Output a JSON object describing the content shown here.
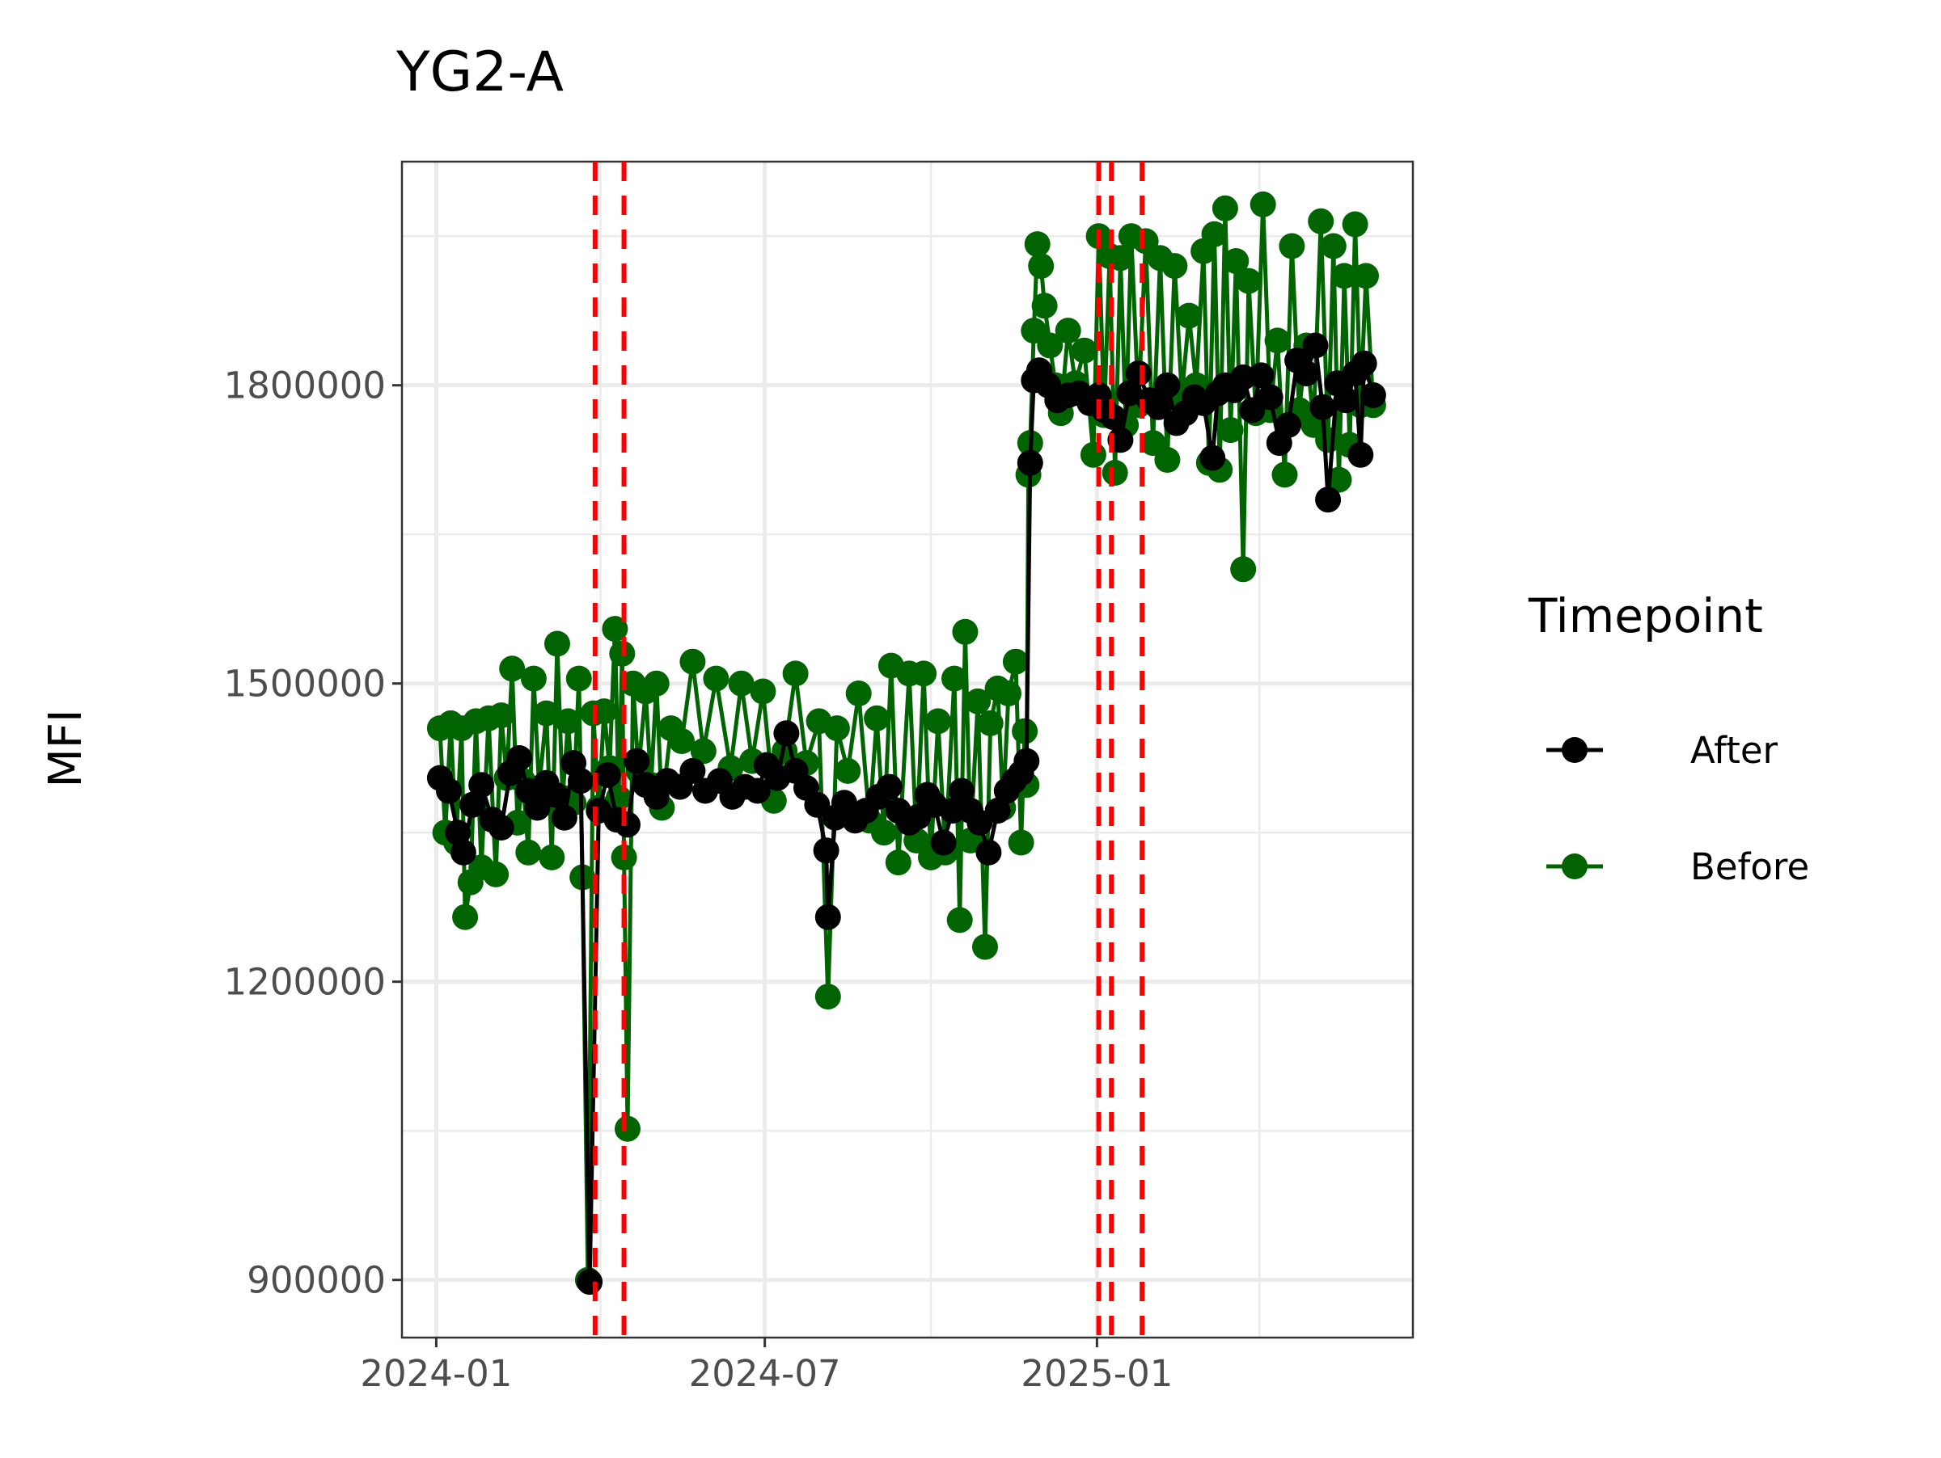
{
  "chart_data": {
    "type": "line",
    "title": "YG2-A",
    "xlabel": "",
    "ylabel": "MFI",
    "x_ticks": [
      "2024-01",
      "2024-07",
      "2025-01"
    ],
    "y_ticks": [
      "900000",
      "1200000",
      "1500000",
      "1800000"
    ],
    "xlim": [
      "2023-12-13",
      "2025-06-25"
    ],
    "ylim": [
      842000,
      2025000
    ],
    "grid": true,
    "legend": {
      "title": "Timepoint",
      "placement": "right",
      "entries": [
        "After",
        "Before"
      ]
    },
    "reference_lines": {
      "style": "dashed",
      "color": "#ff0000",
      "x": [
        "2024-03-29",
        "2024-04-14",
        "2025-01-02",
        "2025-01-09",
        "2025-01-26"
      ]
    },
    "series": [
      {
        "name": "After",
        "color": "#000000",
        "points": [
          [
            "2024-01-03",
            1405000
          ],
          [
            "2024-01-08",
            1392000
          ],
          [
            "2024-01-13",
            1350000
          ],
          [
            "2024-01-16",
            1330000
          ],
          [
            "2024-01-21",
            1378000
          ],
          [
            "2024-01-26",
            1398000
          ],
          [
            "2024-02-01",
            1363000
          ],
          [
            "2024-02-06",
            1355000
          ],
          [
            "2024-02-11",
            1410000
          ],
          [
            "2024-02-16",
            1425000
          ],
          [
            "2024-02-21",
            1392000
          ],
          [
            "2024-02-26",
            1375000
          ],
          [
            "2024-03-02",
            1400000
          ],
          [
            "2024-03-07",
            1388000
          ],
          [
            "2024-03-12",
            1365000
          ],
          [
            "2024-03-17",
            1420000
          ],
          [
            "2024-03-21",
            1402000
          ],
          [
            "2024-03-26",
            898000
          ],
          [
            "2024-03-31",
            1372000
          ],
          [
            "2024-04-05",
            1408000
          ],
          [
            "2024-04-10",
            1363000
          ],
          [
            "2024-04-16",
            1358000
          ],
          [
            "2024-04-21",
            1422000
          ],
          [
            "2024-04-26",
            1398000
          ],
          [
            "2024-05-02",
            1386000
          ],
          [
            "2024-05-08",
            1402000
          ],
          [
            "2024-05-15",
            1396000
          ],
          [
            "2024-05-22",
            1412000
          ],
          [
            "2024-05-29",
            1392000
          ],
          [
            "2024-06-06",
            1402000
          ],
          [
            "2024-06-13",
            1386000
          ],
          [
            "2024-06-20",
            1396000
          ],
          [
            "2024-06-27",
            1392000
          ],
          [
            "2024-07-02",
            1418000
          ],
          [
            "2024-07-08",
            1405000
          ],
          [
            "2024-07-13",
            1450000
          ],
          [
            "2024-07-18",
            1412000
          ],
          [
            "2024-07-24",
            1395000
          ],
          [
            "2024-07-30",
            1378000
          ],
          [
            "2024-08-04",
            1332000
          ],
          [
            "2024-08-05",
            1265000
          ],
          [
            "2024-08-09",
            1365000
          ],
          [
            "2024-08-14",
            1380000
          ],
          [
            "2024-08-20",
            1362000
          ],
          [
            "2024-08-26",
            1372000
          ],
          [
            "2024-09-02",
            1386000
          ],
          [
            "2024-09-08",
            1396000
          ],
          [
            "2024-09-13",
            1372000
          ],
          [
            "2024-09-19",
            1360000
          ],
          [
            "2024-09-24",
            1366000
          ],
          [
            "2024-09-29",
            1388000
          ],
          [
            "2024-10-03",
            1378000
          ],
          [
            "2024-10-08",
            1340000
          ],
          [
            "2024-10-13",
            1372000
          ],
          [
            "2024-10-18",
            1392000
          ],
          [
            "2024-10-23",
            1372000
          ],
          [
            "2024-10-28",
            1360000
          ],
          [
            "2024-11-02",
            1330000
          ],
          [
            "2024-11-07",
            1372000
          ],
          [
            "2024-11-12",
            1392000
          ],
          [
            "2024-11-16",
            1402000
          ],
          [
            "2024-11-20",
            1410000
          ],
          [
            "2024-11-23",
            1422000
          ],
          [
            "2024-11-25",
            1722000
          ],
          [
            "2024-11-27",
            1805000
          ],
          [
            "2024-11-30",
            1815000
          ],
          [
            "2024-12-05",
            1800000
          ],
          [
            "2024-12-10",
            1785000
          ],
          [
            "2024-12-16",
            1790000
          ],
          [
            "2024-12-22",
            1792000
          ],
          [
            "2024-12-28",
            1782000
          ],
          [
            "2025-01-02",
            1790000
          ],
          [
            "2025-01-05",
            1775000
          ],
          [
            "2025-01-10",
            1768000
          ],
          [
            "2025-01-14",
            1745000
          ],
          [
            "2025-01-19",
            1792000
          ],
          [
            "2025-01-24",
            1812000
          ],
          [
            "2025-01-30",
            1785000
          ],
          [
            "2025-02-04",
            1778000
          ],
          [
            "2025-02-09",
            1800000
          ],
          [
            "2025-02-14",
            1762000
          ],
          [
            "2025-02-19",
            1772000
          ],
          [
            "2025-02-24",
            1788000
          ],
          [
            "2025-03-01",
            1782000
          ],
          [
            "2025-03-06",
            1727000
          ],
          [
            "2025-03-09",
            1792000
          ],
          [
            "2025-03-13",
            1800000
          ],
          [
            "2025-03-18",
            1795000
          ],
          [
            "2025-03-23",
            1808000
          ],
          [
            "2025-03-28",
            1775000
          ],
          [
            "2025-04-02",
            1810000
          ],
          [
            "2025-04-07",
            1788000
          ],
          [
            "2025-04-12",
            1742000
          ],
          [
            "2025-04-17",
            1760000
          ],
          [
            "2025-04-22",
            1825000
          ],
          [
            "2025-04-27",
            1812000
          ],
          [
            "2025-05-02",
            1840000
          ],
          [
            "2025-05-06",
            1778000
          ],
          [
            "2025-05-09",
            1685000
          ],
          [
            "2025-05-14",
            1802000
          ],
          [
            "2025-05-19",
            1785000
          ],
          [
            "2025-05-24",
            1812000
          ],
          [
            "2025-05-27",
            1730000
          ],
          [
            "2025-05-29",
            1822000
          ],
          [
            "2025-06-03",
            1790000
          ]
        ]
      },
      {
        "name": "Before",
        "color": "#006400",
        "points": [
          [
            "2024-01-03",
            1455000
          ],
          [
            "2024-01-06",
            1350000
          ],
          [
            "2024-01-09",
            1460000
          ],
          [
            "2024-01-12",
            1340000
          ],
          [
            "2024-01-15",
            1455000
          ],
          [
            "2024-01-17",
            1265000
          ],
          [
            "2024-01-20",
            1300000
          ],
          [
            "2024-01-23",
            1462000
          ],
          [
            "2024-01-26",
            1315000
          ],
          [
            "2024-01-30",
            1465000
          ],
          [
            "2024-02-03",
            1308000
          ],
          [
            "2024-02-06",
            1468000
          ],
          [
            "2024-02-09",
            1405000
          ],
          [
            "2024-02-12",
            1515000
          ],
          [
            "2024-02-15",
            1360000
          ],
          [
            "2024-02-18",
            1402000
          ],
          [
            "2024-02-21",
            1330000
          ],
          [
            "2024-02-24",
            1505000
          ],
          [
            "2024-02-27",
            1395000
          ],
          [
            "2024-03-02",
            1470000
          ],
          [
            "2024-03-05",
            1325000
          ],
          [
            "2024-03-08",
            1540000
          ],
          [
            "2024-03-11",
            1385000
          ],
          [
            "2024-03-14",
            1462000
          ],
          [
            "2024-03-17",
            1380000
          ],
          [
            "2024-03-20",
            1505000
          ],
          [
            "2024-03-22",
            1305000
          ],
          [
            "2024-03-25",
            900000
          ],
          [
            "2024-03-28",
            1470000
          ],
          [
            "2024-03-31",
            1375000
          ],
          [
            "2024-04-03",
            1472000
          ],
          [
            "2024-04-06",
            1415000
          ],
          [
            "2024-04-09",
            1555000
          ],
          [
            "2024-04-11",
            1385000
          ],
          [
            "2024-04-13",
            1530000
          ],
          [
            "2024-04-14",
            1325000
          ],
          [
            "2024-04-16",
            1052000
          ],
          [
            "2024-04-19",
            1500000
          ],
          [
            "2024-04-22",
            1412000
          ],
          [
            "2024-04-26",
            1492000
          ],
          [
            "2024-04-29",
            1398000
          ],
          [
            "2024-05-02",
            1500000
          ],
          [
            "2024-05-05",
            1375000
          ],
          [
            "2024-05-10",
            1455000
          ],
          [
            "2024-05-16",
            1442000
          ],
          [
            "2024-05-22",
            1522000
          ],
          [
            "2024-05-28",
            1432000
          ],
          [
            "2024-06-04",
            1505000
          ],
          [
            "2024-06-12",
            1415000
          ],
          [
            "2024-06-18",
            1500000
          ],
          [
            "2024-06-24",
            1422000
          ],
          [
            "2024-06-30",
            1492000
          ],
          [
            "2024-07-06",
            1382000
          ],
          [
            "2024-07-12",
            1432000
          ],
          [
            "2024-07-18",
            1510000
          ],
          [
            "2024-07-24",
            1420000
          ],
          [
            "2024-07-31",
            1462000
          ],
          [
            "2024-08-05",
            1185000
          ],
          [
            "2024-08-10",
            1455000
          ],
          [
            "2024-08-16",
            1412000
          ],
          [
            "2024-08-22",
            1490000
          ],
          [
            "2024-08-28",
            1362000
          ],
          [
            "2024-09-01",
            1465000
          ],
          [
            "2024-09-05",
            1350000
          ],
          [
            "2024-09-09",
            1518000
          ],
          [
            "2024-09-13",
            1320000
          ],
          [
            "2024-09-19",
            1510000
          ],
          [
            "2024-09-23",
            1342000
          ],
          [
            "2024-09-27",
            1510000
          ],
          [
            "2024-10-01",
            1325000
          ],
          [
            "2024-10-05",
            1462000
          ],
          [
            "2024-10-09",
            1330000
          ],
          [
            "2024-10-14",
            1505000
          ],
          [
            "2024-10-17",
            1262000
          ],
          [
            "2024-10-20",
            1552000
          ],
          [
            "2024-10-23",
            1342000
          ],
          [
            "2024-10-27",
            1482000
          ],
          [
            "2024-10-31",
            1235000
          ],
          [
            "2024-11-03",
            1460000
          ],
          [
            "2024-11-07",
            1495000
          ],
          [
            "2024-11-10",
            1375000
          ],
          [
            "2024-11-13",
            1490000
          ],
          [
            "2024-11-17",
            1522000
          ],
          [
            "2024-11-20",
            1340000
          ],
          [
            "2024-11-22",
            1452000
          ],
          [
            "2024-11-23",
            1398000
          ],
          [
            "2024-11-24",
            1710000
          ],
          [
            "2024-11-25",
            1742000
          ],
          [
            "2024-11-27",
            1855000
          ],
          [
            "2024-11-29",
            1942000
          ],
          [
            "2024-12-01",
            1920000
          ],
          [
            "2024-12-03",
            1880000
          ],
          [
            "2024-12-06",
            1840000
          ],
          [
            "2024-12-09",
            1800000
          ],
          [
            "2024-12-12",
            1772000
          ],
          [
            "2024-12-16",
            1855000
          ],
          [
            "2024-12-20",
            1802000
          ],
          [
            "2024-12-25",
            1835000
          ],
          [
            "2024-12-30",
            1730000
          ],
          [
            "2025-01-02",
            1950000
          ],
          [
            "2025-01-05",
            1770000
          ],
          [
            "2025-01-08",
            1930000
          ],
          [
            "2025-01-11",
            1712000
          ],
          [
            "2025-01-14",
            1928000
          ],
          [
            "2025-01-17",
            1760000
          ],
          [
            "2025-01-20",
            1950000
          ],
          [
            "2025-01-24",
            1780000
          ],
          [
            "2025-01-28",
            1945000
          ],
          [
            "2025-02-01",
            1742000
          ],
          [
            "2025-02-05",
            1928000
          ],
          [
            "2025-02-09",
            1725000
          ],
          [
            "2025-02-13",
            1920000
          ],
          [
            "2025-02-17",
            1790000
          ],
          [
            "2025-02-21",
            1870000
          ],
          [
            "2025-02-25",
            1800000
          ],
          [
            "2025-03-01",
            1935000
          ],
          [
            "2025-03-04",
            1722000
          ],
          [
            "2025-03-07",
            1952000
          ],
          [
            "2025-03-10",
            1715000
          ],
          [
            "2025-03-13",
            1978000
          ],
          [
            "2025-03-16",
            1755000
          ],
          [
            "2025-03-19",
            1925000
          ],
          [
            "2025-03-23",
            1615000
          ],
          [
            "2025-03-26",
            1905000
          ],
          [
            "2025-03-30",
            1772000
          ],
          [
            "2025-04-03",
            1982000
          ],
          [
            "2025-04-07",
            1775000
          ],
          [
            "2025-04-11",
            1845000
          ],
          [
            "2025-04-15",
            1710000
          ],
          [
            "2025-04-19",
            1940000
          ],
          [
            "2025-04-23",
            1775000
          ],
          [
            "2025-04-27",
            1840000
          ],
          [
            "2025-05-01",
            1760000
          ],
          [
            "2025-05-05",
            1965000
          ],
          [
            "2025-05-09",
            1745000
          ],
          [
            "2025-05-12",
            1940000
          ],
          [
            "2025-05-15",
            1705000
          ],
          [
            "2025-05-18",
            1910000
          ],
          [
            "2025-05-21",
            1740000
          ],
          [
            "2025-05-24",
            1962000
          ],
          [
            "2025-05-27",
            1780000
          ],
          [
            "2025-05-30",
            1910000
          ],
          [
            "2025-06-03",
            1780000
          ]
        ]
      }
    ]
  }
}
